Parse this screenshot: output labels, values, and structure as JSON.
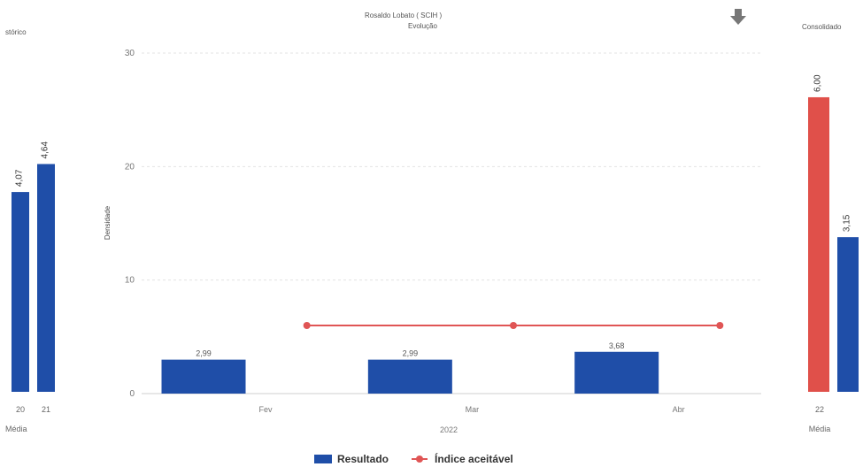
{
  "colors": {
    "bar": "#1f4ea8",
    "line": "#e05555",
    "bar_red": "#e0504a",
    "grid": "#e3e3e3",
    "axis": "#cfcfcf"
  },
  "left_panel": {
    "title": "stórico",
    "xlabel": "Média"
  },
  "right_panel": {
    "title": "Consolidado",
    "xlabel": "Média"
  },
  "main_panel": {
    "title": "Rosaldo Lobato ( SCIH )",
    "subtitle": "Evolução",
    "ylabel": "Densidade",
    "xlabel": "2022"
  },
  "legend": {
    "bar_label": "Resultado",
    "line_label": "Índice aceitável"
  },
  "chart_data": [
    {
      "type": "bar",
      "categories": [
        "20",
        "21"
      ],
      "values": [
        4.07,
        4.64
      ],
      "value_labels": [
        "4,07",
        "4,64"
      ],
      "ylim": [
        0,
        6.9
      ]
    },
    {
      "type": "bar",
      "categories": [
        "Fev",
        "Mar",
        "Abr"
      ],
      "series": [
        {
          "name": "Resultado",
          "type": "bar",
          "values": [
            2.99,
            2.99,
            3.68
          ],
          "labels": [
            "2,99",
            "2,99",
            "3,68"
          ]
        },
        {
          "name": "Índice aceitável",
          "type": "line",
          "x": [
            1.5,
            2.5,
            3.5
          ],
          "values": [
            6,
            6,
            6
          ]
        }
      ],
      "yticks": [
        "0",
        "10",
        "20",
        "30"
      ],
      "ylim": [
        0,
        30
      ],
      "grid": true
    },
    {
      "type": "bar",
      "categories": [
        "22"
      ],
      "series": [
        {
          "color": "#e0504a",
          "values": [
            6.0
          ],
          "labels": [
            "6,00"
          ]
        },
        {
          "color": "#1f4ea8",
          "values": [
            3.15
          ],
          "labels": [
            "3,15"
          ]
        }
      ],
      "ylim": [
        0,
        6.9
      ]
    }
  ]
}
